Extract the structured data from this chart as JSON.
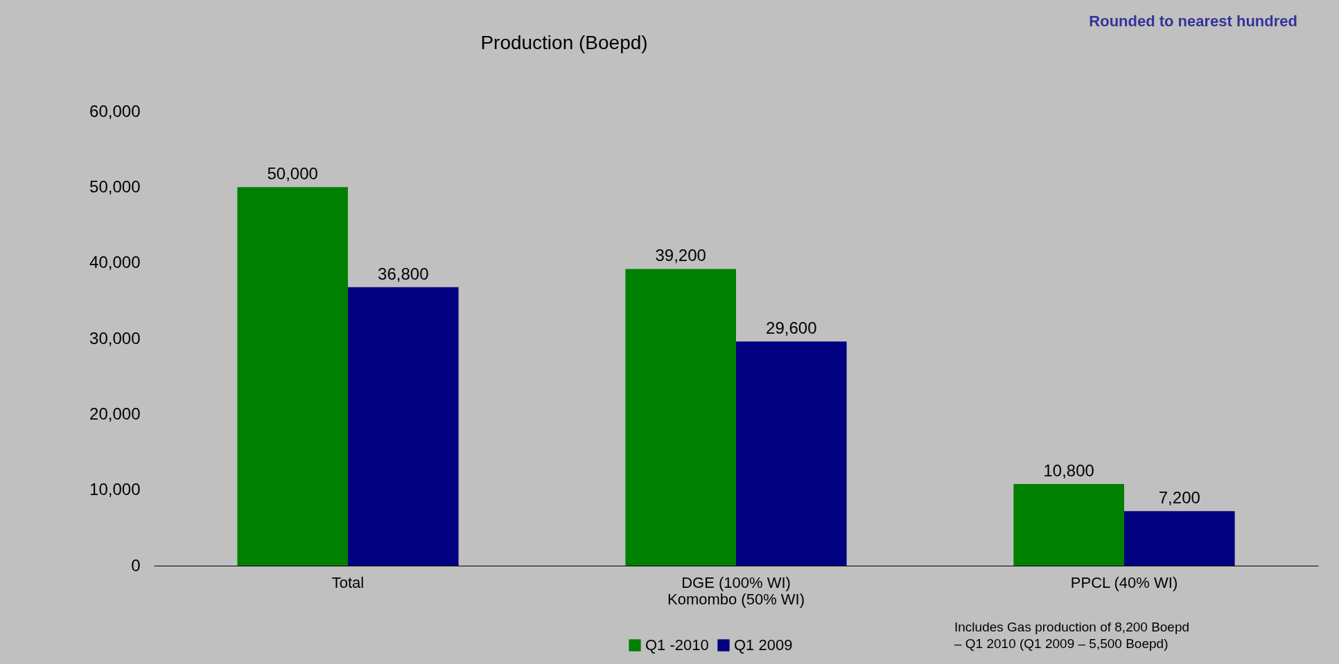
{
  "chart_data": {
    "type": "bar",
    "title": "Production (Boepd)",
    "categories": [
      "Total",
      "DGE (100% WI)\nKomombo (50% WI)",
      "PPCL (40% WI)"
    ],
    "series": [
      {
        "name": "Q1 -2010",
        "color": "#008000",
        "values": [
          50000,
          39200,
          10800
        ],
        "value_labels": [
          "50,000",
          "39,200",
          "10,800"
        ]
      },
      {
        "name": "Q1 2009",
        "color": "#000080",
        "values": [
          36800,
          29600,
          7200
        ],
        "value_labels": [
          "36,800",
          "29,600",
          "7,200"
        ]
      }
    ],
    "ylim": [
      0,
      60000
    ],
    "yticks": [
      0,
      {
        "value": 10000,
        "label": "10,000"
      },
      {
        "value": 20000,
        "label": "20,000"
      },
      {
        "value": 30000,
        "label": "30,000"
      },
      {
        "value": 40000,
        "label": "40,000"
      },
      {
        "value": 50000,
        "label": "50,000"
      },
      {
        "value": 60000,
        "label": "60,000"
      }
    ],
    "grid": false,
    "legend": "bottom",
    "annotations": [
      "Rounded to nearest hundred",
      "Includes Gas production of 8,200 Boepd – Q1 2010 (Q1 2009 – 5,500 Boepd)"
    ]
  }
}
